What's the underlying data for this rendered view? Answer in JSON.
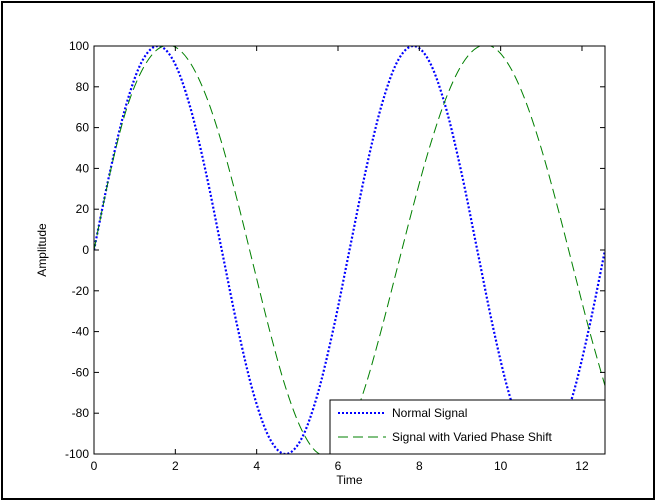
{
  "chart_data": {
    "type": "line",
    "title": "",
    "xlabel": "Time",
    "ylabel": "Amplitude",
    "xlim": [
      0,
      12.566
    ],
    "ylim": [
      -100,
      100
    ],
    "xticks": [
      0,
      2,
      4,
      6,
      8,
      10,
      12
    ],
    "yticks": [
      -100,
      -80,
      -60,
      -40,
      -20,
      0,
      20,
      40,
      60,
      80,
      100
    ],
    "grid": false,
    "legend_position": "bottom-right",
    "series": [
      {
        "name": "Normal Signal",
        "color": "#0000ff",
        "style": "dotted",
        "x": [
          0,
          0.3927,
          0.7854,
          1.1781,
          1.5708,
          1.9635,
          2.3562,
          2.7489,
          3.1416,
          3.5343,
          3.927,
          4.3197,
          4.7124,
          5.1051,
          5.4978,
          5.8905,
          6.2832,
          6.6759,
          7.0686,
          7.4613,
          7.854,
          8.2467,
          8.6394,
          9.0321,
          9.4248,
          9.8175,
          10.2102,
          10.6029,
          10.9956,
          11.3883,
          11.781,
          12.1737,
          12.5664
        ],
        "y": [
          0,
          38.3,
          70.7,
          92.4,
          100,
          92.4,
          70.7,
          38.3,
          0,
          -38.3,
          -70.7,
          -92.4,
          -100,
          -92.4,
          -70.7,
          -38.3,
          0,
          38.3,
          70.7,
          92.4,
          100,
          92.4,
          70.7,
          38.3,
          0,
          -38.3,
          -70.7,
          -92.4,
          -100,
          -92.4,
          -70.7,
          -38.3,
          0
        ]
      },
      {
        "name": "Signal with Varied Phase Shift",
        "color": "#008000",
        "style": "dashed",
        "x": [
          0,
          0.3927,
          0.7854,
          1.1781,
          1.5708,
          1.9635,
          2.3562,
          2.7489,
          3.1416,
          3.5343,
          3.927,
          4.3197,
          4.7124,
          5.1051,
          5.4978,
          5.8905,
          6.2832,
          6.6759,
          7.0686,
          7.4613,
          7.854,
          8.2467,
          8.6394,
          9.0321,
          9.4248,
          9.8175,
          10.2102,
          10.6029,
          10.9956,
          11.3883,
          11.781,
          12.1737,
          12.5664
        ],
        "y": [
          0,
          37.6,
          68.2,
          88.0,
          98.5,
          99.8,
          92.1,
          75.9,
          52.4,
          23.5,
          -8.1,
          -39.5,
          -67.4,
          -88.1,
          -99.4,
          -99.3,
          -87.8,
          -66.6,
          -38.9,
          -8.5,
          21.9,
          50.0,
          73.5,
          90.4,
          99.3,
          99.4,
          90.4,
          73.5,
          50.0,
          21.9,
          -8.5,
          -38.9,
          -66.6
        ]
      }
    ]
  }
}
